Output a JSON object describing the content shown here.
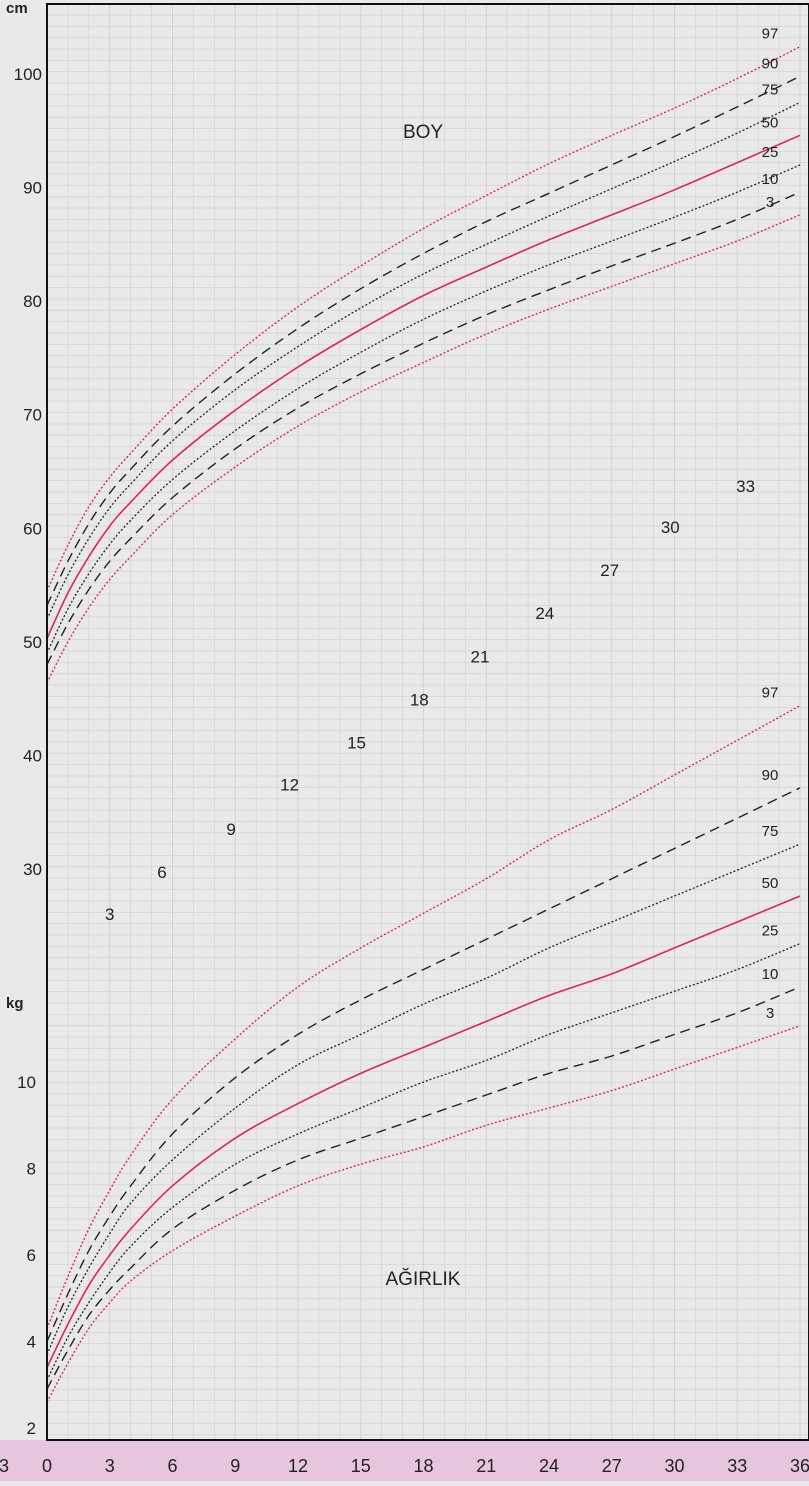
{
  "units": {
    "height": "cm",
    "weight": "kg"
  },
  "labels": {
    "height_section": "BOY",
    "weight_section": "AĞIRLIK"
  },
  "colors": {
    "background": "#e9e9e9",
    "grid": "#d2d2d2",
    "axis_band": "#e6c6dd",
    "curve_pink": "#e0245e",
    "curve_black": "#222222"
  },
  "chart_data": {
    "type": "line",
    "x": {
      "ticks": [
        0,
        3,
        6,
        9,
        12,
        15,
        18,
        21,
        24,
        27,
        30,
        33,
        36
      ],
      "tick_labels": [
        "0",
        "3",
        "6",
        "9",
        "12",
        "15",
        "18",
        "21",
        "24",
        "27",
        "30",
        "33",
        "36"
      ],
      "left_edge_label": "3",
      "range": [
        0,
        36
      ]
    },
    "y_height": {
      "unit": "cm",
      "ticks": [
        30,
        40,
        50,
        60,
        70,
        80,
        90,
        100
      ],
      "range": [
        21,
        104
      ]
    },
    "y_weight": {
      "unit": "kg",
      "ticks": [
        2,
        4,
        6,
        8,
        10
      ],
      "range": [
        1.3,
        13.8
      ]
    },
    "diagonal_month_labels": [
      {
        "text": "3",
        "month": 3,
        "cm": 25.5
      },
      {
        "text": "6",
        "month": 5.5,
        "cm": 29.2
      },
      {
        "text": "9",
        "month": 8.8,
        "cm": 33.0
      },
      {
        "text": "12",
        "month": 11.6,
        "cm": 36.9
      },
      {
        "text": "15",
        "month": 14.8,
        "cm": 40.6
      },
      {
        "text": "18",
        "month": 17.8,
        "cm": 44.4
      },
      {
        "text": "21",
        "month": 20.7,
        "cm": 48.2
      },
      {
        "text": "24",
        "month": 23.8,
        "cm": 52.0
      },
      {
        "text": "27",
        "month": 26.9,
        "cm": 55.8
      },
      {
        "text": "30",
        "month": 29.8,
        "cm": 59.6
      },
      {
        "text": "33",
        "month": 33.4,
        "cm": 63.2
      }
    ],
    "height_series": [
      {
        "name": "97",
        "style": "pink-dotted",
        "points": [
          [
            0,
            54.5
          ],
          [
            1,
            58.5
          ],
          [
            2,
            61.9
          ],
          [
            3,
            64.5
          ],
          [
            4,
            66.6
          ],
          [
            6,
            70.5
          ],
          [
            9,
            75.3
          ],
          [
            12,
            79.5
          ],
          [
            15,
            83.1
          ],
          [
            18,
            86.4
          ],
          [
            21,
            89.3
          ],
          [
            24,
            92.1
          ],
          [
            27,
            94.6
          ],
          [
            30,
            97.0
          ],
          [
            33,
            99.6
          ],
          [
            36,
            102.4
          ]
        ]
      },
      {
        "name": "90",
        "style": "black-dashed",
        "points": [
          [
            0,
            53.2
          ],
          [
            1,
            57.1
          ],
          [
            2,
            60.4
          ],
          [
            3,
            63.1
          ],
          [
            4,
            65.2
          ],
          [
            6,
            69.0
          ],
          [
            9,
            73.6
          ],
          [
            12,
            77.6
          ],
          [
            15,
            81.1
          ],
          [
            18,
            84.2
          ],
          [
            21,
            87.0
          ],
          [
            24,
            89.5
          ],
          [
            27,
            92.0
          ],
          [
            30,
            94.5
          ],
          [
            33,
            97.1
          ],
          [
            36,
            99.8
          ]
        ]
      },
      {
        "name": "75",
        "style": "black-dotted",
        "points": [
          [
            0,
            52.0
          ],
          [
            1,
            55.9
          ],
          [
            2,
            59.1
          ],
          [
            3,
            61.8
          ],
          [
            4,
            63.9
          ],
          [
            6,
            67.7
          ],
          [
            9,
            72.2
          ],
          [
            12,
            76.0
          ],
          [
            15,
            79.4
          ],
          [
            18,
            82.4
          ],
          [
            21,
            85.0
          ],
          [
            24,
            87.5
          ],
          [
            27,
            89.9
          ],
          [
            30,
            92.3
          ],
          [
            33,
            94.8
          ],
          [
            36,
            97.5
          ]
        ]
      },
      {
        "name": "50",
        "style": "pink-solid",
        "points": [
          [
            0,
            50.3
          ],
          [
            1,
            54.3
          ],
          [
            2,
            57.5
          ],
          [
            3,
            60.2
          ],
          [
            4,
            62.3
          ],
          [
            6,
            66.0
          ],
          [
            9,
            70.4
          ],
          [
            12,
            74.2
          ],
          [
            15,
            77.5
          ],
          [
            18,
            80.5
          ],
          [
            21,
            83.0
          ],
          [
            24,
            85.4
          ],
          [
            27,
            87.6
          ],
          [
            30,
            89.8
          ],
          [
            33,
            92.2
          ],
          [
            36,
            94.6
          ]
        ]
      },
      {
        "name": "25",
        "style": "black-dotted",
        "points": [
          [
            0,
            49.0
          ],
          [
            1,
            52.9
          ],
          [
            2,
            56.0
          ],
          [
            3,
            58.6
          ],
          [
            4,
            60.7
          ],
          [
            6,
            64.3
          ],
          [
            9,
            68.6
          ],
          [
            12,
            72.3
          ],
          [
            15,
            75.5
          ],
          [
            18,
            78.4
          ],
          [
            21,
            80.9
          ],
          [
            24,
            83.2
          ],
          [
            27,
            85.3
          ],
          [
            30,
            87.4
          ],
          [
            33,
            89.6
          ],
          [
            36,
            92.0
          ]
        ]
      },
      {
        "name": "10",
        "style": "black-dashed",
        "points": [
          [
            0,
            48.0
          ],
          [
            1,
            51.6
          ],
          [
            2,
            54.6
          ],
          [
            3,
            57.1
          ],
          [
            4,
            59.1
          ],
          [
            6,
            62.7
          ],
          [
            9,
            67.0
          ],
          [
            12,
            70.6
          ],
          [
            15,
            73.6
          ],
          [
            18,
            76.3
          ],
          [
            21,
            78.8
          ],
          [
            24,
            81.0
          ],
          [
            27,
            83.1
          ],
          [
            30,
            85.1
          ],
          [
            33,
            87.2
          ],
          [
            36,
            89.6
          ]
        ]
      },
      {
        "name": "3",
        "style": "pink-dotted",
        "points": [
          [
            0,
            46.4
          ],
          [
            1,
            50.0
          ],
          [
            2,
            53.0
          ],
          [
            3,
            55.5
          ],
          [
            4,
            57.5
          ],
          [
            6,
            61.2
          ],
          [
            9,
            65.4
          ],
          [
            12,
            69.0
          ],
          [
            15,
            72.0
          ],
          [
            18,
            74.6
          ],
          [
            21,
            77.1
          ],
          [
            24,
            79.3
          ],
          [
            27,
            81.3
          ],
          [
            30,
            83.3
          ],
          [
            33,
            85.3
          ],
          [
            36,
            87.6
          ]
        ]
      }
    ],
    "weight_series": [
      {
        "name": "97",
        "style": "pink-dotted",
        "points": [
          [
            0,
            4.3
          ],
          [
            1,
            5.5
          ],
          [
            2,
            6.6
          ],
          [
            3,
            7.5
          ],
          [
            4,
            8.3
          ],
          [
            6,
            9.6
          ],
          [
            9,
            11.0
          ],
          [
            12,
            12.2
          ],
          [
            15,
            13.1
          ],
          [
            18,
            13.9
          ],
          [
            21,
            14.7
          ],
          [
            24,
            15.6
          ],
          [
            27,
            16.3
          ],
          [
            30,
            17.1
          ],
          [
            33,
            17.9
          ],
          [
            36,
            18.7
          ]
        ]
      },
      {
        "name": "90",
        "style": "black-dashed",
        "points": [
          [
            0,
            4.0
          ],
          [
            1,
            5.1
          ],
          [
            2,
            6.1
          ],
          [
            3,
            6.9
          ],
          [
            4,
            7.6
          ],
          [
            6,
            8.8
          ],
          [
            9,
            10.1
          ],
          [
            12,
            11.1
          ],
          [
            15,
            11.9
          ],
          [
            18,
            12.6
          ],
          [
            21,
            13.3
          ],
          [
            24,
            14.0
          ],
          [
            27,
            14.7
          ],
          [
            30,
            15.4
          ],
          [
            33,
            16.1
          ],
          [
            36,
            16.8
          ]
        ]
      },
      {
        "name": "75",
        "style": "black-dotted",
        "points": [
          [
            0,
            3.7
          ],
          [
            1,
            4.8
          ],
          [
            2,
            5.7
          ],
          [
            3,
            6.5
          ],
          [
            4,
            7.2
          ],
          [
            6,
            8.2
          ],
          [
            9,
            9.4
          ],
          [
            12,
            10.4
          ],
          [
            15,
            11.1
          ],
          [
            18,
            11.8
          ],
          [
            21,
            12.4
          ],
          [
            24,
            13.1
          ],
          [
            27,
            13.7
          ],
          [
            30,
            14.3
          ],
          [
            33,
            14.9
          ],
          [
            36,
            15.5
          ]
        ]
      },
      {
        "name": "50",
        "style": "pink-solid",
        "points": [
          [
            0,
            3.4
          ],
          [
            1,
            4.4
          ],
          [
            2,
            5.3
          ],
          [
            3,
            6.0
          ],
          [
            4,
            6.6
          ],
          [
            6,
            7.6
          ],
          [
            9,
            8.7
          ],
          [
            12,
            9.5
          ],
          [
            15,
            10.2
          ],
          [
            18,
            10.8
          ],
          [
            21,
            11.4
          ],
          [
            24,
            12.0
          ],
          [
            27,
            12.5
          ],
          [
            30,
            13.1
          ],
          [
            33,
            13.7
          ],
          [
            36,
            14.3
          ]
        ]
      },
      {
        "name": "25",
        "style": "black-dotted",
        "points": [
          [
            0,
            3.1
          ],
          [
            1,
            4.1
          ],
          [
            2,
            4.9
          ],
          [
            3,
            5.6
          ],
          [
            4,
            6.2
          ],
          [
            6,
            7.1
          ],
          [
            9,
            8.1
          ],
          [
            12,
            8.8
          ],
          [
            15,
            9.4
          ],
          [
            18,
            10.0
          ],
          [
            21,
            10.5
          ],
          [
            24,
            11.1
          ],
          [
            27,
            11.6
          ],
          [
            30,
            12.1
          ],
          [
            33,
            12.6
          ],
          [
            36,
            13.2
          ]
        ]
      },
      {
        "name": "10",
        "style": "black-dashed",
        "points": [
          [
            0,
            2.9
          ],
          [
            1,
            3.8
          ],
          [
            2,
            4.6
          ],
          [
            3,
            5.2
          ],
          [
            4,
            5.7
          ],
          [
            6,
            6.6
          ],
          [
            9,
            7.5
          ],
          [
            12,
            8.2
          ],
          [
            15,
            8.7
          ],
          [
            18,
            9.2
          ],
          [
            21,
            9.7
          ],
          [
            24,
            10.2
          ],
          [
            27,
            10.6
          ],
          [
            30,
            11.1
          ],
          [
            33,
            11.6
          ],
          [
            36,
            12.2
          ]
        ]
      },
      {
        "name": "3",
        "style": "pink-dotted",
        "points": [
          [
            0,
            2.6
          ],
          [
            1,
            3.5
          ],
          [
            2,
            4.3
          ],
          [
            3,
            4.9
          ],
          [
            4,
            5.4
          ],
          [
            6,
            6.1
          ],
          [
            9,
            6.9
          ],
          [
            12,
            7.6
          ],
          [
            15,
            8.1
          ],
          [
            18,
            8.5
          ],
          [
            21,
            9.0
          ],
          [
            24,
            9.4
          ],
          [
            27,
            9.8
          ],
          [
            30,
            10.3
          ],
          [
            33,
            10.8
          ],
          [
            36,
            11.3
          ]
        ]
      }
    ]
  }
}
